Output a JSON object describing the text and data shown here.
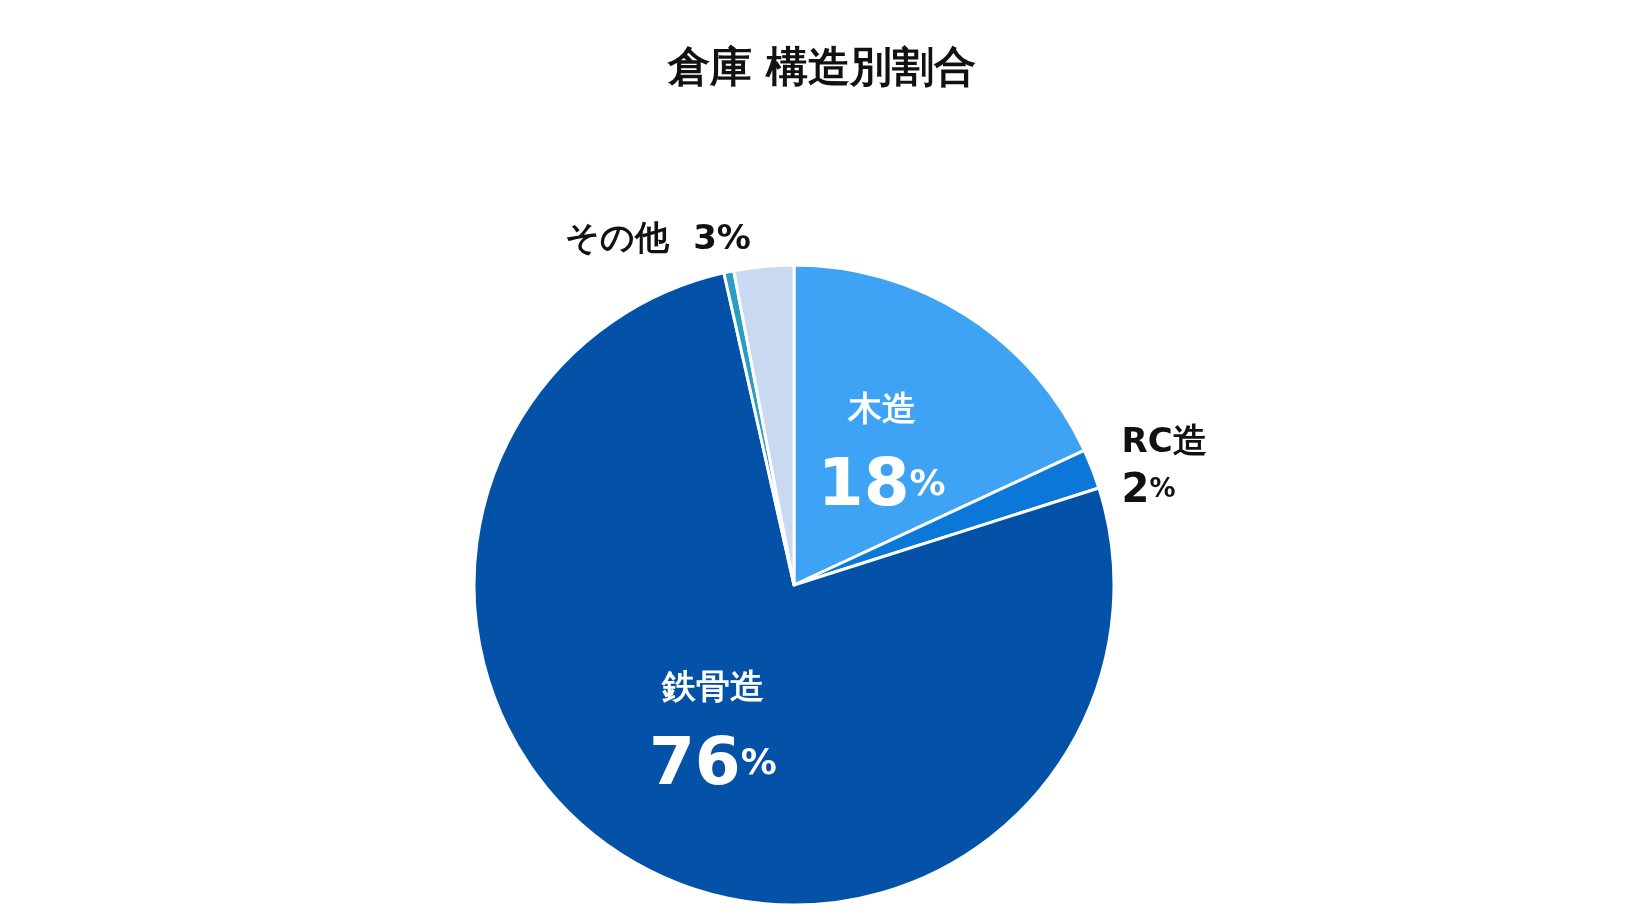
{
  "chart_data": {
    "type": "pie",
    "title": "倉庫 構造別割合",
    "categories": [
      "木造",
      "RC造",
      "鉄骨造",
      null,
      "その他"
    ],
    "values": [
      18,
      2,
      76,
      0.5,
      3
    ],
    "value_labels": [
      "18%",
      "2%",
      "76%",
      null,
      "3%"
    ],
    "colors": [
      "#3fa3f5",
      "#0b78d9",
      "#0452a8",
      "#2b9cc4",
      "#c9d9f1"
    ],
    "legend": false
  }
}
